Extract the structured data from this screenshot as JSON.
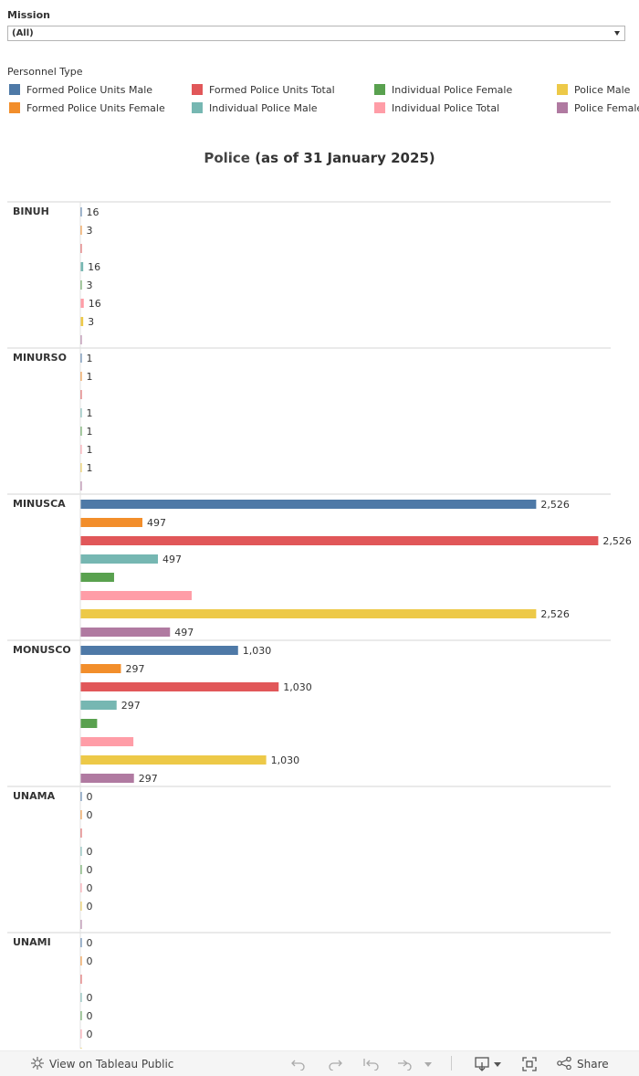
{
  "filter": {
    "title": "Mission",
    "value": "(All)"
  },
  "legend": {
    "title": "Personnel Type",
    "items": [
      {
        "label": "Formed Police Units Male",
        "color": "#4e79a7"
      },
      {
        "label": "Formed Police Units Total",
        "color": "#e15759"
      },
      {
        "label": "Individual Police Female",
        "color": "#59a14f"
      },
      {
        "label": "Police Male",
        "color": "#edc948"
      },
      {
        "label": "Formed Police Units Female",
        "color": "#f28e2b"
      },
      {
        "label": "Individual Police Male",
        "color": "#76b7b2"
      },
      {
        "label": "Individual Police Total",
        "color": "#ff9da7"
      },
      {
        "label": "Police Female",
        "color": "#b07aa1"
      }
    ]
  },
  "title": {
    "part1": "Police",
    "part2": " (as of 31 January 2025)"
  },
  "chart_data": {
    "type": "bar",
    "orientation": "horizontal",
    "title": "Police (as of 31 January 2025)",
    "series_order": [
      "Formed Police Units Male",
      "Formed Police Units Female",
      "Formed Police Units Total",
      "Individual Police Male",
      "Individual Police Female",
      "Individual Police Total",
      "Police Male",
      "Police Female"
    ],
    "colors": [
      "#4e79a7",
      "#f28e2b",
      "#e15759",
      "#76b7b2",
      "#59a14f",
      "#ff9da7",
      "#edc948",
      "#b07aa1"
    ],
    "xlim": [
      0,
      2600
    ],
    "grid": false,
    "categories": [
      "BINUH",
      "MINURSO",
      "MINUSCA",
      "MONUSCO",
      "UNAMA",
      "UNAMI"
    ],
    "values": [
      [
        0,
        0,
        0,
        16,
        3,
        19,
        16,
        3
      ],
      [
        0,
        0,
        0,
        1,
        1,
        2,
        1,
        1
      ],
      [
        2526,
        344,
        2870,
        430,
        187,
        617,
        2526,
        497
      ],
      [
        874,
        225,
        1099,
        201,
        93,
        294,
        1030,
        297
      ],
      [
        0,
        0,
        0,
        0,
        0,
        0,
        0,
        0
      ],
      [
        0,
        0,
        0,
        0,
        0,
        0,
        0,
        0
      ]
    ],
    "labels": [
      [
        "16",
        "3",
        "",
        "16",
        "3",
        "16",
        "3",
        ""
      ],
      [
        "1",
        "1",
        "",
        "1",
        "1",
        "1",
        "1",
        ""
      ],
      [
        "2,526",
        "497",
        "2,526",
        "497",
        "",
        "",
        "2,526",
        "497"
      ],
      [
        "1,030",
        "297",
        "1,030",
        "297",
        "",
        "",
        "1,030",
        "297"
      ],
      [
        "0",
        "0",
        "",
        "0",
        "0",
        "0",
        "0",
        ""
      ],
      [
        "0",
        "0",
        "",
        "0",
        "0",
        "0",
        "0",
        ""
      ]
    ]
  },
  "toolbar": {
    "view_label": "View on Tableau Public",
    "share_label": "Share",
    "settings_icon": "tableau-settings-icon",
    "undo_icon": "undo-icon",
    "redo_icon": "redo-icon",
    "revert_icon": "revert-icon",
    "refresh_icon": "refresh-icon",
    "download_icon": "download-icon",
    "fullscreen_icon": "fullscreen-icon",
    "share_icon": "share-icon"
  }
}
